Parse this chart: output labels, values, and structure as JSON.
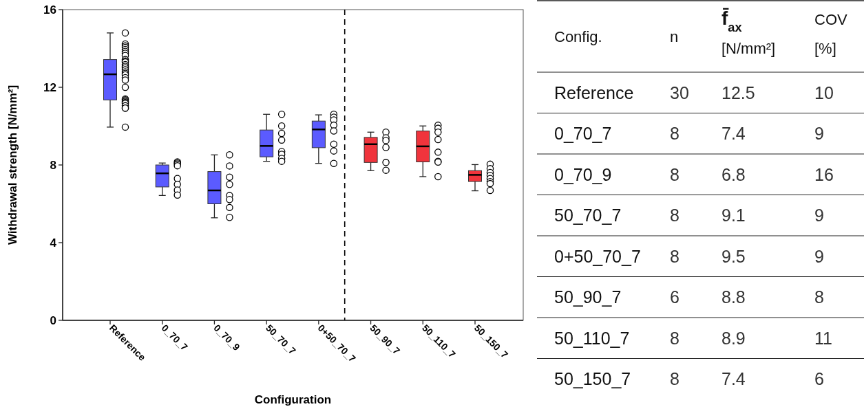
{
  "chart_data": [
    {
      "type": "box",
      "xlabel": "Configuration",
      "ylabel": "Withdrawal strength [N/mm²]",
      "categories": [
        "Reference",
        "0_70_7",
        "0_70_9",
        "50_70_7",
        "0+50_70_7",
        "50_90_7",
        "50_110_7",
        "50_150_7"
      ],
      "colors": [
        "#5b5bff",
        "#5b5bff",
        "#5b5bff",
        "#5b5bff",
        "#5b5bff",
        "#f0343c",
        "#f0343c",
        "#f0343c"
      ],
      "boxes": [
        {
          "low": 9.95,
          "q1": 11.35,
          "median": 12.67,
          "q3": 13.43,
          "high": 14.8
        },
        {
          "low": 6.43,
          "q1": 6.87,
          "median": 7.57,
          "q3": 8.0,
          "high": 8.1
        },
        {
          "low": 5.28,
          "q1": 6.0,
          "median": 6.69,
          "q3": 7.66,
          "high": 8.52
        },
        {
          "low": 8.19,
          "q1": 8.42,
          "median": 8.98,
          "q3": 9.8,
          "high": 10.61
        },
        {
          "low": 8.08,
          "q1": 8.89,
          "median": 9.83,
          "q3": 10.26,
          "high": 10.58
        },
        {
          "low": 7.71,
          "q1": 8.13,
          "median": 9.07,
          "q3": 9.42,
          "high": 9.69
        },
        {
          "low": 7.4,
          "q1": 8.16,
          "median": 8.96,
          "q3": 9.75,
          "high": 10.01
        },
        {
          "low": 6.67,
          "q1": 7.15,
          "median": 7.49,
          "q3": 7.71,
          "high": 8.02
        }
      ],
      "series": [
        {
          "type": "scatter",
          "color": "#000000",
          "x": [
            "Reference",
            "Reference",
            "Reference",
            "Reference",
            "Reference",
            "Reference",
            "Reference",
            "Reference",
            "Reference",
            "Reference",
            "Reference",
            "Reference",
            "Reference",
            "Reference",
            "Reference",
            "Reference",
            "Reference",
            "Reference",
            "Reference",
            "Reference",
            "Reference",
            "Reference",
            "Reference",
            "Reference",
            "Reference",
            "Reference",
            "Reference",
            "Reference",
            "Reference",
            "Reference",
            "0_70_7",
            "0_70_7",
            "0_70_7",
            "0_70_7",
            "0_70_7",
            "0_70_7",
            "0_70_7",
            "0_70_7",
            "0_70_9",
            "0_70_9",
            "0_70_9",
            "0_70_9",
            "0_70_9",
            "0_70_9",
            "0_70_9",
            "0_70_9",
            "50_70_7",
            "50_70_7",
            "50_70_7",
            "50_70_7",
            "50_70_7",
            "50_70_7",
            "50_70_7",
            "50_70_7",
            "0+50_70_7",
            "0+50_70_7",
            "0+50_70_7",
            "0+50_70_7",
            "0+50_70_7",
            "0+50_70_7",
            "0+50_70_7",
            "0+50_70_7",
            "50_90_7",
            "50_90_7",
            "50_90_7",
            "50_90_7",
            "50_90_7",
            "50_90_7",
            "50_110_7",
            "50_110_7",
            "50_110_7",
            "50_110_7",
            "50_110_7",
            "50_110_7",
            "50_110_7",
            "50_110_7",
            "50_150_7",
            "50_150_7",
            "50_150_7",
            "50_150_7",
            "50_150_7",
            "50_150_7",
            "50_150_7",
            "50_150_7"
          ],
          "values": [
            14.8,
            14.23,
            14.13,
            14.05,
            13.95,
            13.85,
            13.75,
            13.64,
            13.43,
            13.35,
            13.3,
            13.17,
            13.08,
            13.0,
            12.9,
            12.8,
            12.72,
            12.64,
            12.5,
            12.37,
            12.0,
            11.4,
            11.35,
            11.28,
            11.22,
            11.17,
            11.05,
            10.93,
            10.93,
            9.95,
            8.16,
            8.1,
            8.04,
            7.96,
            7.3,
            7.0,
            6.71,
            6.45,
            8.52,
            7.95,
            7.37,
            7.0,
            6.43,
            6.22,
            5.81,
            5.3,
            10.61,
            10.01,
            9.63,
            9.28,
            8.69,
            8.55,
            8.34,
            8.19,
            10.61,
            10.46,
            10.32,
            10.05,
            9.75,
            9.07,
            8.72,
            8.08,
            9.69,
            9.4,
            9.26,
            8.9,
            8.13,
            7.73,
            10.05,
            9.89,
            9.69,
            9.31,
            8.66,
            8.19,
            8.15,
            7.4,
            8.04,
            7.81,
            7.61,
            7.46,
            7.3,
            7.14,
            7.04,
            6.69
          ]
        }
      ],
      "marker": "circle",
      "ylim": [
        0,
        16
      ],
      "yticks": [
        0,
        4,
        8,
        12,
        16
      ]
    },
    {
      "type": "other",
      "data_labels": true,
      "xlabel": "Config.",
      "categories": [
        "Reference",
        "0_70_7",
        "0_70_9",
        "50_70_7",
        "0+50_70_7",
        "50_90_7",
        "50_110_7",
        "50_150_7"
      ],
      "series": [
        {
          "name": "n",
          "values": [
            30,
            8,
            8,
            8,
            8,
            6,
            8,
            8
          ]
        },
        {
          "name": "f̄$_{ax}$ [N/mm²]",
          "values": [
            12.5,
            7.4,
            6.8,
            9.1,
            9.5,
            8.8,
            8.9,
            7.4
          ]
        },
        {
          "name": "COV [%]",
          "values": [
            10,
            9,
            16,
            9,
            9,
            8,
            11,
            6
          ]
        }
      ]
    }
  ]
}
